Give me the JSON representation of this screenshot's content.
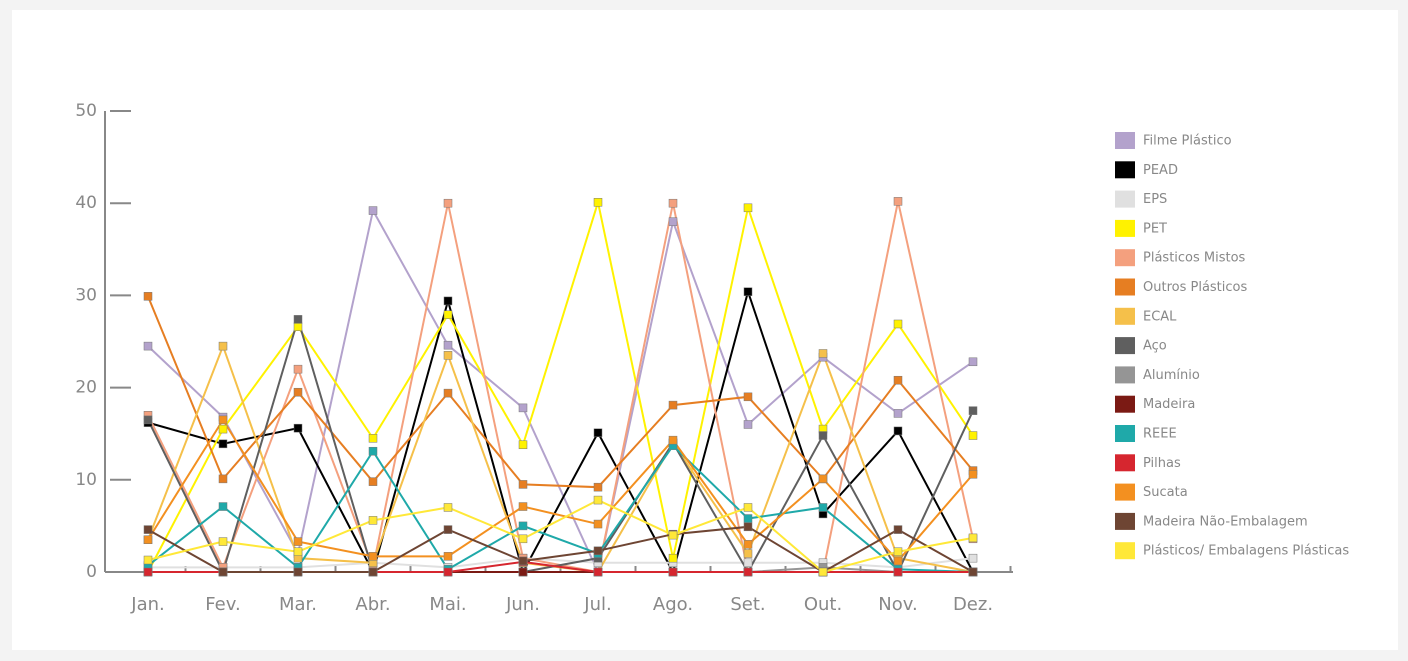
{
  "chart_data": {
    "type": "line",
    "categories": [
      "Jan.",
      "Fev.",
      "Mar.",
      "Abr.",
      "Mai.",
      "Jun.",
      "Jul.",
      "Ago.",
      "Set.",
      "Out.",
      "Nov.",
      "Dez."
    ],
    "ylim": [
      0,
      50
    ],
    "yticks": [
      0,
      10,
      20,
      30,
      40,
      50
    ],
    "series": [
      {
        "name": "Filme Plástico",
        "color": "#b3a2cc",
        "values": [
          24.5,
          16.8,
          2,
          39.2,
          24.6,
          17.8,
          0,
          38,
          16,
          23.3,
          17.2,
          22.8
        ]
      },
      {
        "name": "PEAD",
        "color": "#000000",
        "values": [
          16.2,
          13.9,
          15.6,
          0,
          29.4,
          0,
          15.1,
          0,
          30.4,
          6.3,
          15.3,
          0
        ]
      },
      {
        "name": "EPS",
        "color": "#e0e0e0",
        "values": [
          0.5,
          0.5,
          0.5,
          1,
          0.5,
          1.5,
          1,
          1,
          1,
          1,
          0.5,
          1.5
        ]
      },
      {
        "name": "PET",
        "color": "#fff200",
        "values": [
          0,
          15.5,
          26.6,
          14.5,
          27.9,
          13.8,
          40.1,
          1.5,
          39.5,
          15.5,
          26.9,
          14.8
        ]
      },
      {
        "name": "Plásticos Mistos",
        "color": "#f4a07e",
        "values": [
          17,
          0.5,
          22,
          0.5,
          40,
          1.5,
          0,
          40,
          0,
          0,
          40.2,
          3.6
        ]
      },
      {
        "name": "Outros Plásticos",
        "color": "#e67e22",
        "values": [
          29.9,
          10.1,
          19.5,
          9.8,
          19.4,
          9.5,
          9.2,
          18.1,
          19,
          10.1,
          20.8,
          11
        ]
      },
      {
        "name": "ECAL",
        "color": "#f5c04a",
        "values": [
          3.5,
          24.5,
          1.5,
          1,
          23.5,
          1,
          0,
          14,
          2,
          23.7,
          1.5,
          0
        ]
      },
      {
        "name": "Aço",
        "color": "#5f5f5f",
        "values": [
          16.5,
          0,
          27.4,
          0,
          0,
          0,
          1.5,
          14,
          0,
          14.8,
          0,
          17.5
        ]
      },
      {
        "name": "Alumínio",
        "color": "#959595",
        "values": [
          0,
          0,
          0,
          0,
          0,
          0,
          0,
          0,
          0,
          0.5,
          0,
          0
        ]
      },
      {
        "name": "Madeira",
        "color": "#7b1a14",
        "values": [
          0,
          0,
          0,
          0,
          0,
          0,
          0,
          0,
          0,
          0,
          0,
          0
        ]
      },
      {
        "name": "REEE",
        "color": "#1fa9a9",
        "values": [
          0.7,
          7.1,
          0.5,
          13.1,
          0.3,
          5,
          2,
          13.7,
          5.8,
          7,
          0.3,
          0
        ]
      },
      {
        "name": "Pilhas",
        "color": "#d6262f",
        "values": [
          0,
          0,
          0,
          0,
          0,
          1.1,
          0,
          0,
          0,
          0,
          0,
          0
        ]
      },
      {
        "name": "Sucata",
        "color": "#f39020",
        "values": [
          3.5,
          16.5,
          3.3,
          1.7,
          1.7,
          7.1,
          5.2,
          14.3,
          3,
          10.1,
          1.2,
          10.6
        ]
      },
      {
        "name": "Madeira Não-Embalagem",
        "color": "#6e4533",
        "values": [
          4.6,
          0,
          0,
          0,
          4.6,
          1.2,
          2.3,
          4.1,
          4.9,
          0,
          4.6,
          0
        ]
      },
      {
        "name": "Plásticos/ Embalagens Plásticas",
        "color": "#ffe838",
        "values": [
          1.3,
          3.3,
          2.2,
          5.6,
          7,
          3.6,
          7.8,
          4,
          7,
          0,
          2.2,
          3.7
        ]
      }
    ]
  }
}
